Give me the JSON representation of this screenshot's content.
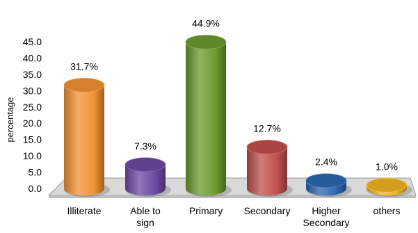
{
  "chart_data": {
    "type": "bar",
    "title": "",
    "xlabel": "",
    "ylabel": "percentage",
    "ylim": [
      0,
      45
    ],
    "y_ticks": [
      "0.0",
      "5.0",
      "10.0",
      "15.0",
      "20.0",
      "25.0",
      "30.0",
      "35.0",
      "40.0",
      "45.0"
    ],
    "categories": [
      "Illiterate",
      "Able to sign",
      "Primary",
      "Secondary",
      "Higher Secondary",
      "others"
    ],
    "category_lines": [
      [
        "Illiterate"
      ],
      [
        "Able to",
        "sign"
      ],
      [
        "Primary"
      ],
      [
        "Secondary"
      ],
      [
        "Higher",
        "Secondary"
      ],
      [
        "others"
      ]
    ],
    "values": [
      31.7,
      7.3,
      44.9,
      12.7,
      2.4,
      1.0
    ],
    "data_labels": [
      "31.7%",
      "7.3%",
      "44.9%",
      "12.7%",
      "2.4%",
      "1.0%"
    ],
    "colors": [
      "#f39234",
      "#6b4aa3",
      "#6d9a2d",
      "#c0504d",
      "#2e67b1",
      "#f0b31f"
    ],
    "grid": false,
    "legend": "none",
    "style": "3d-cylinder"
  }
}
